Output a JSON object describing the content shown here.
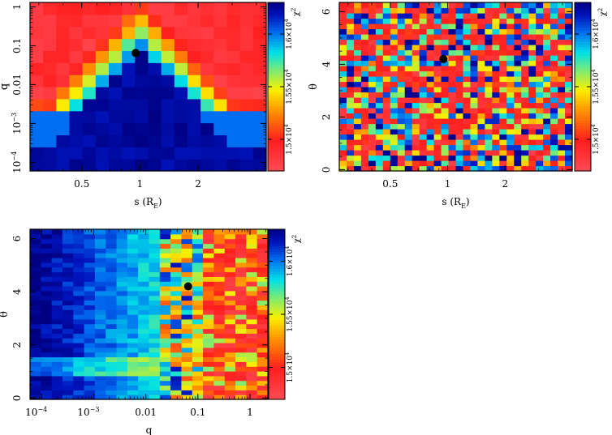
{
  "chart_data": [
    {
      "type": "heatmap",
      "title": "",
      "xlabel": "s (R",
      "xlabel_sub": "E",
      "xlabel_close": ")",
      "ylabel": "q",
      "x_scale": "log",
      "x_range": [
        0.27,
        4.5
      ],
      "x_ticks": [
        {
          "value": 0.5,
          "label": "0.5"
        },
        {
          "value": 1,
          "label": "1"
        },
        {
          "value": 2,
          "label": "2"
        }
      ],
      "y_scale": "log",
      "y_range": [
        6e-05,
        1.3
      ],
      "y_ticks": [
        {
          "value": 1,
          "label": "1"
        },
        {
          "value": 0.1,
          "label": "0.1"
        },
        {
          "value": 0.01,
          "label": "0.01"
        },
        {
          "value": 0.001,
          "label": "10",
          "exp": "−3"
        },
        {
          "value": 0.0001,
          "label": "10",
          "exp": "−4"
        }
      ],
      "best_fit": {
        "x": 0.95,
        "y": 0.065
      },
      "grid": {
        "cols": 18,
        "rows": 14,
        "pattern": "q_map"
      },
      "colorbar": {
        "label": "χ",
        "label_exp": "2",
        "ticks": [
          {
            "value": 15000,
            "text": "1.5×10"
          },
          {
            "value": 15500,
            "text": "1.55×10"
          },
          {
            "value": 16000,
            "text": "1.6×10"
          }
        ],
        "tick_exp": "4",
        "range": [
          14700,
          16300
        ]
      }
    },
    {
      "type": "heatmap",
      "title": "",
      "xlabel": "s (R",
      "xlabel_sub": "E",
      "xlabel_close": ")",
      "ylabel": "θ",
      "x_scale": "log",
      "x_range": [
        0.27,
        4.5
      ],
      "x_ticks": [
        {
          "value": 0.5,
          "label": "0.5"
        },
        {
          "value": 1,
          "label": "1"
        },
        {
          "value": 2,
          "label": "2"
        }
      ],
      "y_scale": "linear",
      "y_range": [
        -0.05,
        6.35
      ],
      "y_ticks": [
        {
          "value": 0,
          "label": "0"
        },
        {
          "value": 2,
          "label": "2"
        },
        {
          "value": 4,
          "label": "4"
        },
        {
          "value": 6,
          "label": "6"
        }
      ],
      "best_fit": {
        "x": 0.95,
        "y": 4.2
      },
      "grid": {
        "cols": 32,
        "rows": 32,
        "pattern": "noise"
      },
      "colorbar": {
        "label": "χ",
        "label_exp": "2",
        "ticks": [
          {
            "value": 15000,
            "text": "1.5×10"
          },
          {
            "value": 15500,
            "text": "1.55×10"
          },
          {
            "value": 16000,
            "text": "1.6×10"
          }
        ],
        "tick_exp": "4",
        "range": [
          14700,
          16300
        ]
      }
    },
    {
      "type": "heatmap",
      "title": "",
      "xlabel": "q",
      "ylabel": "θ",
      "x_scale": "log",
      "x_range": [
        6e-05,
        2.2
      ],
      "x_ticks": [
        {
          "value": 0.0001,
          "label": "10",
          "exp": "−4"
        },
        {
          "value": 0.001,
          "label": "10",
          "exp": "−3"
        },
        {
          "value": 0.01,
          "label": "0.01"
        },
        {
          "value": 0.1,
          "label": "0.1"
        },
        {
          "value": 1,
          "label": "1"
        }
      ],
      "y_scale": "linear",
      "y_range": [
        -0.05,
        6.35
      ],
      "y_ticks": [
        {
          "value": 0,
          "label": "0"
        },
        {
          "value": 2,
          "label": "2"
        },
        {
          "value": 4,
          "label": "4"
        },
        {
          "value": 6,
          "label": "6"
        }
      ],
      "best_fit": {
        "x": 0.065,
        "y": 4.2
      },
      "grid": {
        "cols": 22,
        "rows": 36,
        "pattern": "q_theta"
      },
      "colorbar": {
        "label": "χ",
        "label_exp": "2",
        "ticks": [
          {
            "value": 15000,
            "text": "1.5×10"
          },
          {
            "value": 15500,
            "text": "1.55×10"
          },
          {
            "value": 16000,
            "text": "1.6×10"
          }
        ],
        "tick_exp": "4",
        "range": [
          14700,
          16300
        ]
      }
    }
  ]
}
